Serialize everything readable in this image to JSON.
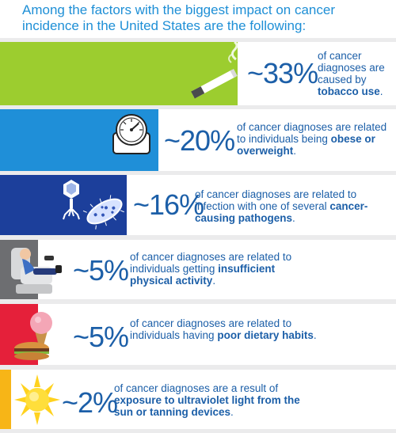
{
  "header": {
    "title": "Among the factors with the biggest impact on cancer incidence in the United States are the following:"
  },
  "colors": {
    "text_blue": "#1c5fa8",
    "header_blue": "#1e8fd6"
  },
  "chart_data": {
    "type": "table",
    "title": "Among the factors with the biggest impact on cancer incidence in the United States are the following:",
    "rows": [
      {
        "factor": "tobacco use",
        "percent_label": "~33%",
        "value": 33,
        "text_before": "of cancer diagnoses are caused by",
        "text_bold": "tobacco use",
        "text_after": ".",
        "color": "#9ccd2f",
        "icon": "cigarette-icon"
      },
      {
        "factor": "obese or overweight",
        "percent_label": "~20%",
        "value": 20,
        "text_before": "of cancer diagnoses are related to individuals being",
        "text_bold": "obese or overweight",
        "text_after": ".",
        "color": "#1f8fd8",
        "icon": "scale-icon"
      },
      {
        "factor": "cancer-causing pathogens",
        "percent_label": "~16%",
        "value": 16,
        "text_before": "of cancer diagnoses are related to infection with one of several",
        "text_bold": "cancer-causing pathogens",
        "text_after": ".",
        "color": "#1c3f9b",
        "icon": "pathogen-icon"
      },
      {
        "factor": "insufficient physical activity",
        "percent_label": "~5%",
        "value": 5,
        "text_before": "of cancer diagnoses are related to individuals getting",
        "text_bold": "insufficient physical activity",
        "text_after": ".",
        "color": "#6d6e71",
        "icon": "couch-icon"
      },
      {
        "factor": "poor dietary habits",
        "percent_label": "~5%",
        "value": 5,
        "text_before": "of cancer diagnoses are related to individuals having",
        "text_bold": "poor dietary habits",
        "text_after": ".",
        "color": "#e5203a",
        "icon": "junk-food-icon"
      },
      {
        "factor": "ultraviolet light",
        "percent_label": "~2%",
        "value": 2,
        "text_before": "of cancer diagnoses are a result of",
        "text_bold": "exposure to ultraviolet light from the sun or tanning devices",
        "text_after": ".",
        "color": "#f7b517",
        "icon": "sun-icon"
      }
    ]
  }
}
